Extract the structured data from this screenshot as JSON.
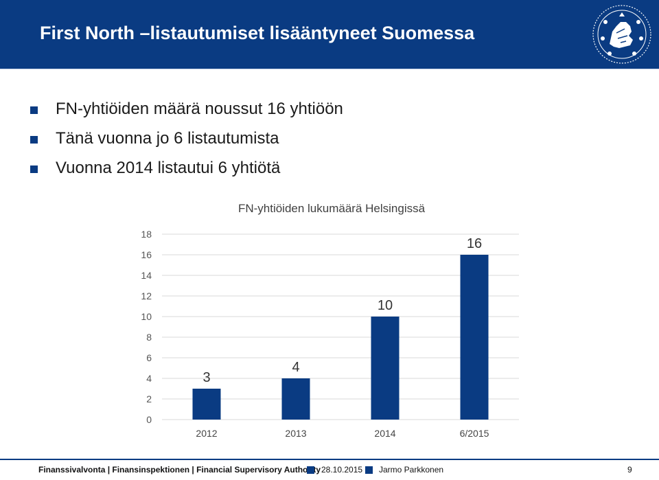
{
  "header": {
    "title": "First North –listautumiset lisääntyneet Suomessa"
  },
  "bullets": [
    "FN-yhtiöiden määrä noussut 16 yhtiöön",
    "Tänä vuonna jo 6 listautumista",
    "Vuonna 2014 listautui 6 yhtiötä"
  ],
  "chart_data": {
    "type": "bar",
    "title": "FN-yhtiöiden lukumäärä Helsingissä",
    "categories": [
      "2012",
      "2013",
      "2014",
      "6/2015"
    ],
    "values": [
      3,
      4,
      10,
      16
    ],
    "data_labels": [
      "3",
      "4",
      "10",
      "16"
    ],
    "xlabel": "",
    "ylabel": "",
    "ylim": [
      0,
      18
    ],
    "yticks": [
      0,
      2,
      4,
      6,
      8,
      10,
      12,
      14,
      16,
      18
    ],
    "grid": true,
    "legend": "none",
    "bar_color": "#0a3b82"
  },
  "footer": {
    "organization": "Finanssivalvonta | Finansinspektionen | Financial Supervisory Authority",
    "date": "28.10.2015",
    "author": "Jarmo Parkkonen",
    "page": "9"
  },
  "colors": {
    "brand": "#0a3b82"
  }
}
